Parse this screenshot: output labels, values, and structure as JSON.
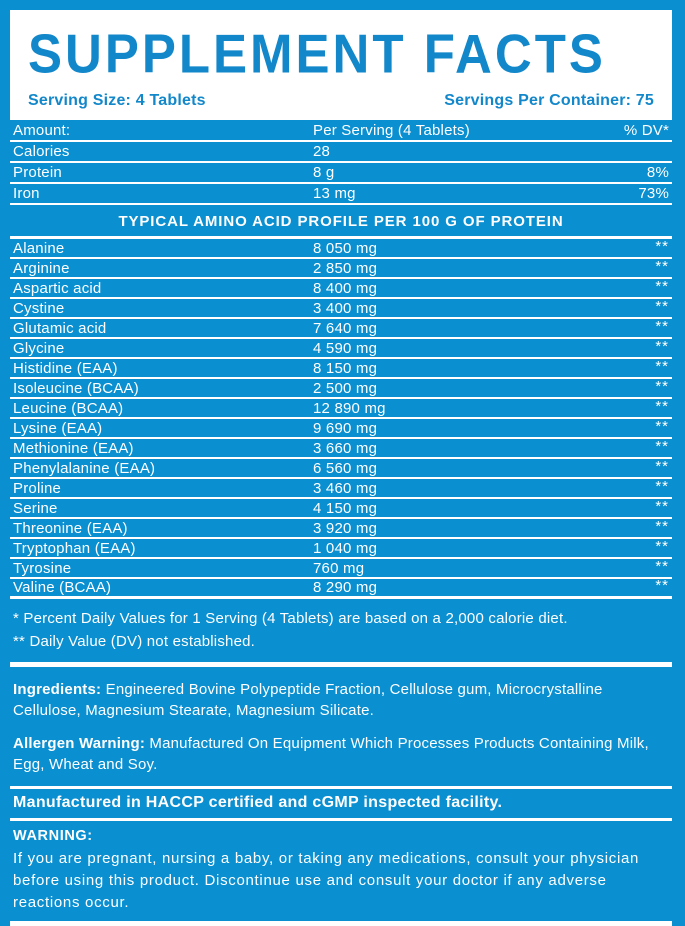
{
  "colors": {
    "background_blue": "#0A8FD1",
    "accent_blue": "#1287CA",
    "white": "#FFFFFF"
  },
  "header": {
    "title": "SUPPLEMENT FACTS",
    "serving_size": "Serving Size: 4 Tablets",
    "servings_per_container": "Servings Per Container: 75"
  },
  "facts_table": {
    "columns": {
      "amount": "Amount:",
      "per_serving": "Per Serving (4 Tablets)",
      "dv": "% DV*"
    },
    "rows": [
      {
        "name": "Calories",
        "amount": "28",
        "dv": ""
      },
      {
        "name": "Protein",
        "amount": "8 g",
        "dv": "8%"
      },
      {
        "name": "Iron",
        "amount": "13 mg",
        "dv": "73%"
      }
    ]
  },
  "amino_profile": {
    "header": "TYPICAL AMINO ACID PROFILE PER 100 G OF PROTEIN",
    "rows": [
      {
        "name": "Alanine",
        "amount": "8 050 mg",
        "dv": "**"
      },
      {
        "name": "Arginine",
        "amount": "2 850 mg",
        "dv": "**"
      },
      {
        "name": "Aspartic acid",
        "amount": "8 400 mg",
        "dv": "**"
      },
      {
        "name": "Cystine",
        "amount": "3 400 mg",
        "dv": "**"
      },
      {
        "name": "Glutamic acid",
        "amount": "7 640 mg",
        "dv": "**"
      },
      {
        "name": "Glycine",
        "amount": "4 590 mg",
        "dv": "**"
      },
      {
        "name": "Histidine (EAA)",
        "amount": "8 150 mg",
        "dv": "**"
      },
      {
        "name": "Isoleucine (BCAA)",
        "amount": "2 500 mg",
        "dv": "**"
      },
      {
        "name": "Leucine (BCAA)",
        "amount": "12 890 mg",
        "dv": "**"
      },
      {
        "name": "Lysine (EAA)",
        "amount": "9 690 mg",
        "dv": "**"
      },
      {
        "name": "Methionine (EAA)",
        "amount": "3 660 mg",
        "dv": "**"
      },
      {
        "name": "Phenylalanine (EAA)",
        "amount": "6 560 mg",
        "dv": "**"
      },
      {
        "name": "Proline",
        "amount": "3 460 mg",
        "dv": "**"
      },
      {
        "name": "Serine",
        "amount": "4 150 mg",
        "dv": "**"
      },
      {
        "name": "Threonine (EAA)",
        "amount": "3 920 mg",
        "dv": "**"
      },
      {
        "name": "Tryptophan (EAA)",
        "amount": "1 040 mg",
        "dv": "**"
      },
      {
        "name": "Tyrosine",
        "amount": "760 mg",
        "dv": "**"
      },
      {
        "name": "Valine (BCAA)",
        "amount": "8 290 mg",
        "dv": "**"
      }
    ]
  },
  "footnotes": {
    "daily_values": "* Percent Daily Values for 1 Serving (4 Tablets) are based on a 2,000 calorie diet.",
    "not_established": "** Daily Value (DV) not established."
  },
  "ingredients": {
    "label": "Ingredients:",
    "text": " Engineered Bovine Polypeptide Fraction, Cellulose gum, Microcrystalline Cellulose, Magnesium Stearate, Magnesium Silicate."
  },
  "allergen_warning": {
    "label": "Allergen Warning:",
    "text": " Manufactured On Equipment Which Processes Products Containing Milk, Egg, Wheat and Soy."
  },
  "facility_note": "Manufactured in HACCP certified and cGMP inspected facility.",
  "warning": {
    "label": "WARNING:",
    "text": "If you are pregnant, nursing a baby, or taking any medications, consult your physician before using this product. Discontinue use and consult your doctor if any adverse reactions occur."
  }
}
